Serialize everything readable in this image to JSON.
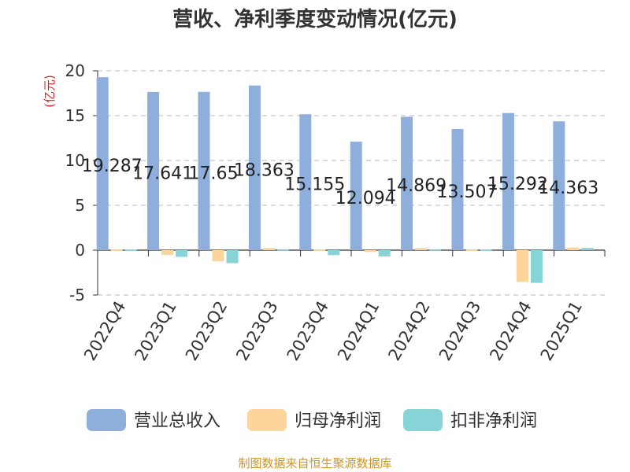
{
  "title": "营收、净利季度变动情况(亿元)",
  "source": "制图数据来自恒生聚源数据库",
  "chart_data": {
    "type": "bar",
    "title": "营收、净利季度变动情况(亿元)",
    "ylabel": "(亿元)",
    "xlabel": "",
    "ylim": [
      -5,
      20
    ],
    "yticks": [
      20,
      15,
      10,
      5,
      0,
      -5
    ],
    "grid": true,
    "legend_position": "bottom",
    "categories": [
      "2022Q4",
      "2023Q1",
      "2023Q2",
      "2023Q3",
      "2023Q4",
      "2024Q1",
      "2024Q2",
      "2024Q3",
      "2024Q4",
      "2025Q1"
    ],
    "series": [
      {
        "name": "营业总收入",
        "color": "#8eaedc",
        "values": [
          19.287,
          17.641,
          17.65,
          18.363,
          15.155,
          12.094,
          14.869,
          13.507,
          15.292,
          14.363
        ]
      },
      {
        "name": "归母净利润",
        "color": "#fdd49a",
        "values": [
          0.05,
          -0.55,
          -1.25,
          0.25,
          0.05,
          -0.2,
          0.25,
          0.05,
          -3.55,
          0.3
        ]
      },
      {
        "name": "扣非净利润",
        "color": "#86d4d8",
        "values": [
          0.05,
          -0.75,
          -1.45,
          0.1,
          -0.55,
          -0.7,
          0.1,
          0.05,
          -3.65,
          0.25
        ]
      }
    ],
    "data_labels": [
      "19.287",
      "17.641",
      "17.65",
      "18.363",
      "15.155",
      "12.094",
      "14.869",
      "13.507",
      "15.292",
      "14.363"
    ]
  }
}
